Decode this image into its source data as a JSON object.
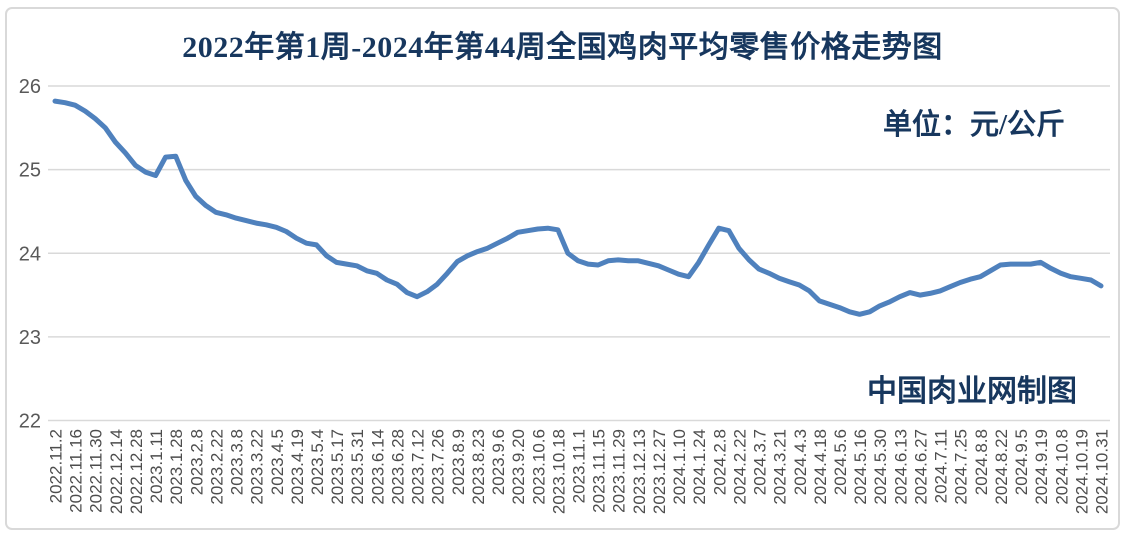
{
  "header": {
    "title": "2022年第1周-2024年第44周全国鸡肉平均零售价格走势图"
  },
  "colors": {
    "navy_text": "#17375e",
    "line": "#4f81bd",
    "gridline": "#d9d9d9",
    "y_tick_text": "#595959",
    "x_tick_text": "#4d4d4d",
    "frame_border": "#d9d9d9",
    "background": "#ffffff"
  },
  "chart_data": {
    "type": "line",
    "title": "2022年第1周-2024年第44周全国鸡肉平均零售价格走势图",
    "unit_label": "单位：元/公斤",
    "credit": "中国肉业网制图",
    "xlabel": "",
    "ylabel": "",
    "ylim": [
      22,
      26
    ],
    "y_ticks": [
      26,
      25,
      24,
      23,
      22
    ],
    "grid": "horizontal-only",
    "legend": "none",
    "label_every_n_points": 2,
    "x_labels": [
      "2022.11.2",
      "2022.11.16",
      "2022.11.30",
      "2022.12.14",
      "2022.12.28",
      "2023.1.11",
      "2023.1.28",
      "2023.2.8",
      "2023.2.22",
      "2023.3.8",
      "2023.3.22",
      "2023.4.5",
      "2023.4.19",
      "2023.5.4",
      "2023.5.17",
      "2023.5.31",
      "2023.6.14",
      "2023.6.28",
      "2023.7.12",
      "2023.7.26",
      "2023.8.9",
      "2023.8.23",
      "2023.9.6",
      "2023.9.20",
      "2023.10.6",
      "2023.10.18",
      "2023.11.1",
      "2023.11.15",
      "2023.11.29",
      "2023.12.13",
      "2023.12.27",
      "2024.1.10",
      "2024.1.24",
      "2024.2.8",
      "2024.2.22",
      "2024.3.7",
      "2024.3.21",
      "2024.4.3",
      "2024.4.18",
      "2024.5.6",
      "2024.5.16",
      "2024.5.30",
      "2024.6.13",
      "2024.6.27",
      "2024.7.11",
      "2024.7.25",
      "2024.8.8",
      "2024.8.22",
      "2024.9.5",
      "2024.9.19",
      "2024.10.8",
      "2024.10.19",
      "2024.10.31"
    ],
    "series": [
      {
        "name": "全国鸡肉平均零售价格",
        "values": [
          25.82,
          25.8,
          25.77,
          25.7,
          25.61,
          25.5,
          25.33,
          25.2,
          25.05,
          24.97,
          24.93,
          25.15,
          25.16,
          24.87,
          24.68,
          24.57,
          24.49,
          24.46,
          24.42,
          24.39,
          24.36,
          24.34,
          24.31,
          24.26,
          24.18,
          24.12,
          24.1,
          23.97,
          23.89,
          23.87,
          23.85,
          23.79,
          23.76,
          23.68,
          23.63,
          23.53,
          23.48,
          23.54,
          23.63,
          23.76,
          23.9,
          23.97,
          24.02,
          24.06,
          24.12,
          24.18,
          24.25,
          24.27,
          24.29,
          24.3,
          24.28,
          24.0,
          23.91,
          23.87,
          23.86,
          23.91,
          23.92,
          23.91,
          23.91,
          23.88,
          23.85,
          23.8,
          23.75,
          23.72,
          23.89,
          24.1,
          24.3,
          24.27,
          24.06,
          23.92,
          23.81,
          23.76,
          23.7,
          23.66,
          23.62,
          23.55,
          23.43,
          23.39,
          23.35,
          23.3,
          23.27,
          23.3,
          23.37,
          23.42,
          23.48,
          23.53,
          23.5,
          23.52,
          23.55,
          23.6,
          23.65,
          23.69,
          23.72,
          23.79,
          23.86,
          23.87,
          23.87,
          23.87,
          23.89,
          23.82,
          23.76,
          23.72,
          23.7,
          23.68,
          23.61
        ]
      }
    ]
  }
}
